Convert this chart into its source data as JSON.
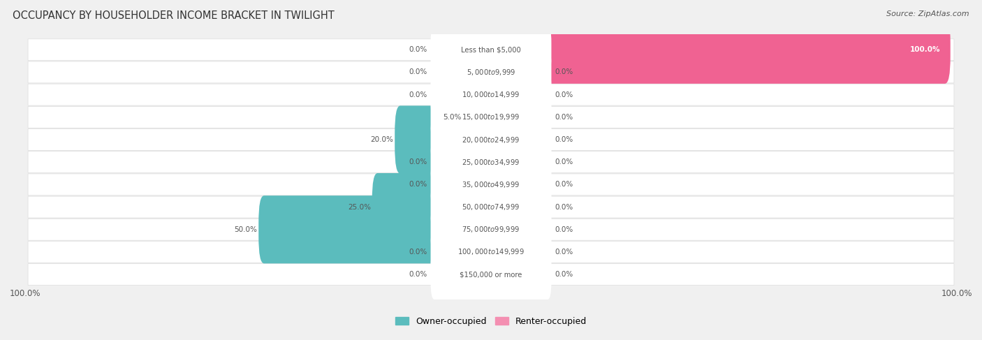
{
  "title": "OCCUPANCY BY HOUSEHOLDER INCOME BRACKET IN TWILIGHT",
  "source": "Source: ZipAtlas.com",
  "categories": [
    "Less than $5,000",
    "$5,000 to $9,999",
    "$10,000 to $14,999",
    "$15,000 to $19,999",
    "$20,000 to $24,999",
    "$25,000 to $34,999",
    "$35,000 to $49,999",
    "$50,000 to $74,999",
    "$75,000 to $99,999",
    "$100,000 to $149,999",
    "$150,000 or more"
  ],
  "owner_values": [
    0.0,
    0.0,
    0.0,
    5.0,
    20.0,
    0.0,
    0.0,
    25.0,
    50.0,
    0.0,
    0.0
  ],
  "renter_values": [
    100.0,
    0.0,
    0.0,
    0.0,
    0.0,
    0.0,
    0.0,
    0.0,
    0.0,
    0.0,
    0.0
  ],
  "owner_color": "#5bbcbd",
  "renter_color": "#f48fb1",
  "renter_color_full": "#f06292",
  "background_color": "#f0f0f0",
  "row_bg_color": "#ffffff",
  "row_alt_color": "#f7f7f7",
  "text_color": "#555555",
  "title_color": "#333333",
  "axis_max": 100.0,
  "figsize": [
    14.06,
    4.87
  ],
  "dpi": 100
}
